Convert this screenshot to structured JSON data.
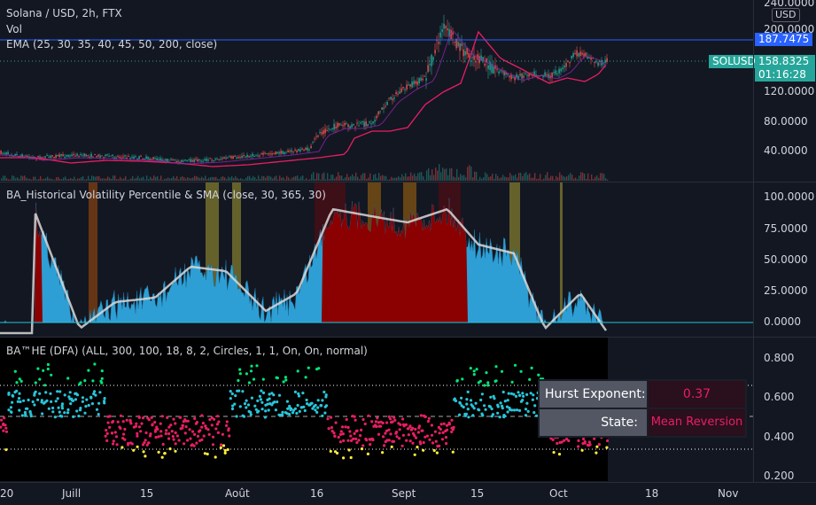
{
  "chart": {
    "symbol_title": "Solana / USD, 2h, FTX",
    "vol_label": "Vol",
    "ema_label": "EMA (25, 30, 35, 40, 45, 50, 200, close)",
    "currency_button": "USD",
    "symbol_tag": "SOLUSD",
    "last_price": "158.8325",
    "countdown": "01:16:28",
    "hline_price": "187.7475",
    "price_axis": [
      "240.0000",
      "200.0000",
      "120.0000",
      "80.0000",
      "40.0000"
    ]
  },
  "hvp": {
    "title": "BA_Historical Volatility Percentile & SMA (close, 30, 365, 30)",
    "axis": [
      "100.0000",
      "75.0000",
      "50.0000",
      "25.0000",
      "0.0000"
    ]
  },
  "hurst": {
    "title": "BA™HE (DFA) (ALL, 300, 100, 18, 8, 2, Circles, 1, 1, On, On, normal)",
    "axis": [
      "0.800",
      "0.600",
      "0.400",
      "0.200"
    ],
    "table": {
      "exponent_label": "Hurst Exponent:",
      "exponent_value": "0.37",
      "state_label": "State:",
      "state_value": "Mean Reversion"
    }
  },
  "time_axis": [
    "20",
    "Juill",
    "15",
    "Août",
    "16",
    "Sept",
    "15",
    "Oct",
    "18",
    "Nov"
  ],
  "colors": {
    "background": "#131722",
    "up": "#26a69a",
    "down": "#ef5350",
    "ema_long": "#e91e63",
    "hline": "#2962ff",
    "hvp_fill": "#2e9fd4",
    "hvp_sma": "#d8d8d8",
    "hurst_cyan": "#26c6da",
    "hurst_pink": "#e91e63",
    "hurst_green": "#00e676",
    "hurst_yellow": "#ffeb3b",
    "table_value": "#e91e63"
  }
}
